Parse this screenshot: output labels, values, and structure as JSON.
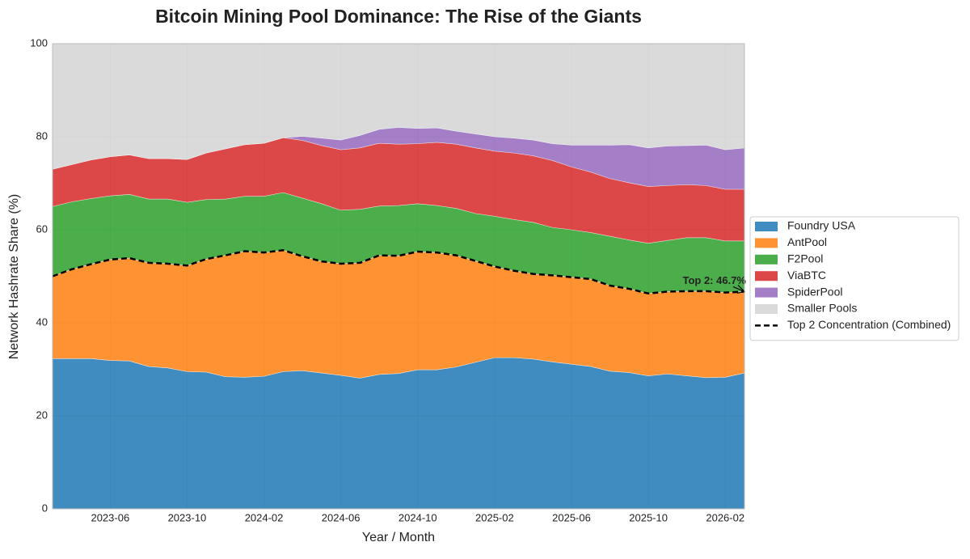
{
  "chart_data": {
    "type": "stacked_area",
    "title": "Bitcoin Mining Pool Dominance: The Rise of the Giants",
    "x_label": "Year / Month",
    "y_label": "Network Hashrate Share (%)",
    "x": [
      "2023-03",
      "2023-04",
      "2023-05",
      "2023-06",
      "2023-07",
      "2023-08",
      "2023-09",
      "2023-10",
      "2023-11",
      "2023-12",
      "2024-01",
      "2024-02",
      "2024-03",
      "2024-04",
      "2024-05",
      "2024-06",
      "2024-07",
      "2024-08",
      "2024-09",
      "2024-10",
      "2024-11",
      "2024-12",
      "2025-01",
      "2025-02",
      "2025-03",
      "2025-04",
      "2025-05",
      "2025-06",
      "2025-07",
      "2025-08",
      "2025-09",
      "2025-10",
      "2025-11",
      "2025-12",
      "2026-01",
      "2026-02",
      "2026-03"
    ],
    "xlim": [
      "2023-03",
      "2026-03"
    ],
    "xticks": [
      "2023-06",
      "2023-10",
      "2024-02",
      "2024-06",
      "2024-10",
      "2025-02",
      "2025-06",
      "2025-10",
      "2026-02"
    ],
    "ylim": [
      0,
      100
    ],
    "yticks": [
      0,
      20,
      40,
      60,
      80,
      100
    ],
    "grid": true,
    "legend": "right",
    "series": [
      {
        "name": "Foundry USA",
        "type": "area",
        "color": "#1f77b4",
        "values": [
          32.3,
          32.3,
          32.3,
          31.9,
          31.8,
          30.6,
          30.3,
          29.5,
          29.4,
          28.4,
          28.3,
          28.5,
          29.5,
          29.7,
          29.2,
          28.7,
          28.1,
          28.9,
          29.1,
          29.9,
          29.9,
          30.5,
          31.5,
          32.5,
          32.5,
          32.2,
          31.6,
          31.1,
          30.6,
          29.6,
          29.3,
          28.6,
          29.0,
          28.6,
          28.2,
          28.3,
          29.2
        ]
      },
      {
        "name": "AntPool",
        "type": "area",
        "color": "#ff7f0e",
        "values": [
          17.7,
          19.2,
          20.3,
          21.7,
          22.1,
          22.3,
          22.4,
          22.8,
          24.3,
          26.1,
          27.1,
          26.6,
          26.1,
          24.6,
          24.0,
          24.0,
          24.8,
          25.6,
          25.3,
          25.4,
          25.2,
          24.0,
          21.8,
          19.6,
          18.7,
          18.3,
          18.6,
          18.7,
          18.8,
          18.4,
          18.0,
          17.7,
          17.7,
          18.2,
          18.6,
          18.2,
          17.5
        ]
      },
      {
        "name": "F2Pool",
        "type": "area",
        "color": "#2ca02c",
        "values": [
          15.0,
          14.5,
          14.1,
          13.7,
          13.7,
          13.7,
          13.9,
          13.6,
          12.8,
          12.1,
          11.8,
          12.1,
          12.4,
          12.5,
          12.4,
          11.5,
          11.5,
          10.6,
          10.8,
          10.3,
          10.1,
          10.1,
          10.2,
          10.8,
          11.0,
          11.1,
          10.3,
          10.2,
          10.0,
          10.6,
          10.5,
          10.8,
          11.0,
          11.5,
          11.5,
          11.1,
          10.9
        ]
      },
      {
        "name": "ViaBTC",
        "type": "area",
        "color": "#d62728",
        "values": [
          8.0,
          8.0,
          8.3,
          8.4,
          8.5,
          8.7,
          8.7,
          9.2,
          10.0,
          10.8,
          11.1,
          11.4,
          11.8,
          12.4,
          12.5,
          13.0,
          13.2,
          13.5,
          13.2,
          12.9,
          13.6,
          13.8,
          14.1,
          14.0,
          14.3,
          14.3,
          14.4,
          13.5,
          13.0,
          12.4,
          12.3,
          12.2,
          11.8,
          11.4,
          11.2,
          11.1,
          11.1
        ]
      },
      {
        "name": "SpiderPool",
        "type": "area",
        "color": "#9467bd",
        "values": [
          0,
          0,
          0,
          0,
          0,
          0,
          0,
          0,
          0,
          0,
          0,
          0,
          0,
          0.9,
          1.6,
          2.1,
          2.7,
          3.0,
          3.6,
          3.3,
          3.1,
          2.8,
          3.0,
          3.1,
          3.2,
          3.4,
          3.6,
          4.7,
          5.8,
          7.2,
          8.2,
          8.3,
          8.5,
          8.4,
          8.7,
          8.5,
          8.9
        ]
      },
      {
        "name": "Smaller Pools",
        "type": "area",
        "color": "#d3d3d3",
        "values": [
          27.0,
          26.0,
          25.0,
          24.3,
          23.9,
          24.7,
          24.7,
          24.9,
          23.5,
          22.6,
          21.7,
          21.4,
          20.2,
          19.9,
          20.3,
          20.7,
          19.7,
          18.4,
          18.0,
          18.2,
          18.1,
          18.8,
          19.4,
          20.0,
          20.3,
          20.7,
          21.5,
          21.8,
          21.8,
          21.8,
          21.7,
          22.4,
          22.0,
          21.9,
          21.8,
          22.8,
          22.4
        ]
      },
      {
        "name": "Top 2 Concentration (Combined)",
        "type": "line",
        "color": "#000000",
        "values": [
          50.0,
          51.5,
          52.6,
          53.6,
          53.9,
          52.9,
          52.7,
          52.3,
          53.7,
          54.5,
          55.4,
          55.1,
          55.6,
          54.3,
          53.2,
          52.7,
          52.9,
          54.5,
          54.4,
          55.3,
          55.1,
          54.5,
          53.3,
          52.1,
          51.2,
          50.5,
          50.2,
          49.8,
          49.4,
          48.0,
          47.3,
          46.3,
          46.7,
          46.8,
          46.8,
          46.5,
          46.7
        ]
      }
    ],
    "annotation": {
      "text": "Top 2: 46.7%"
    }
  }
}
